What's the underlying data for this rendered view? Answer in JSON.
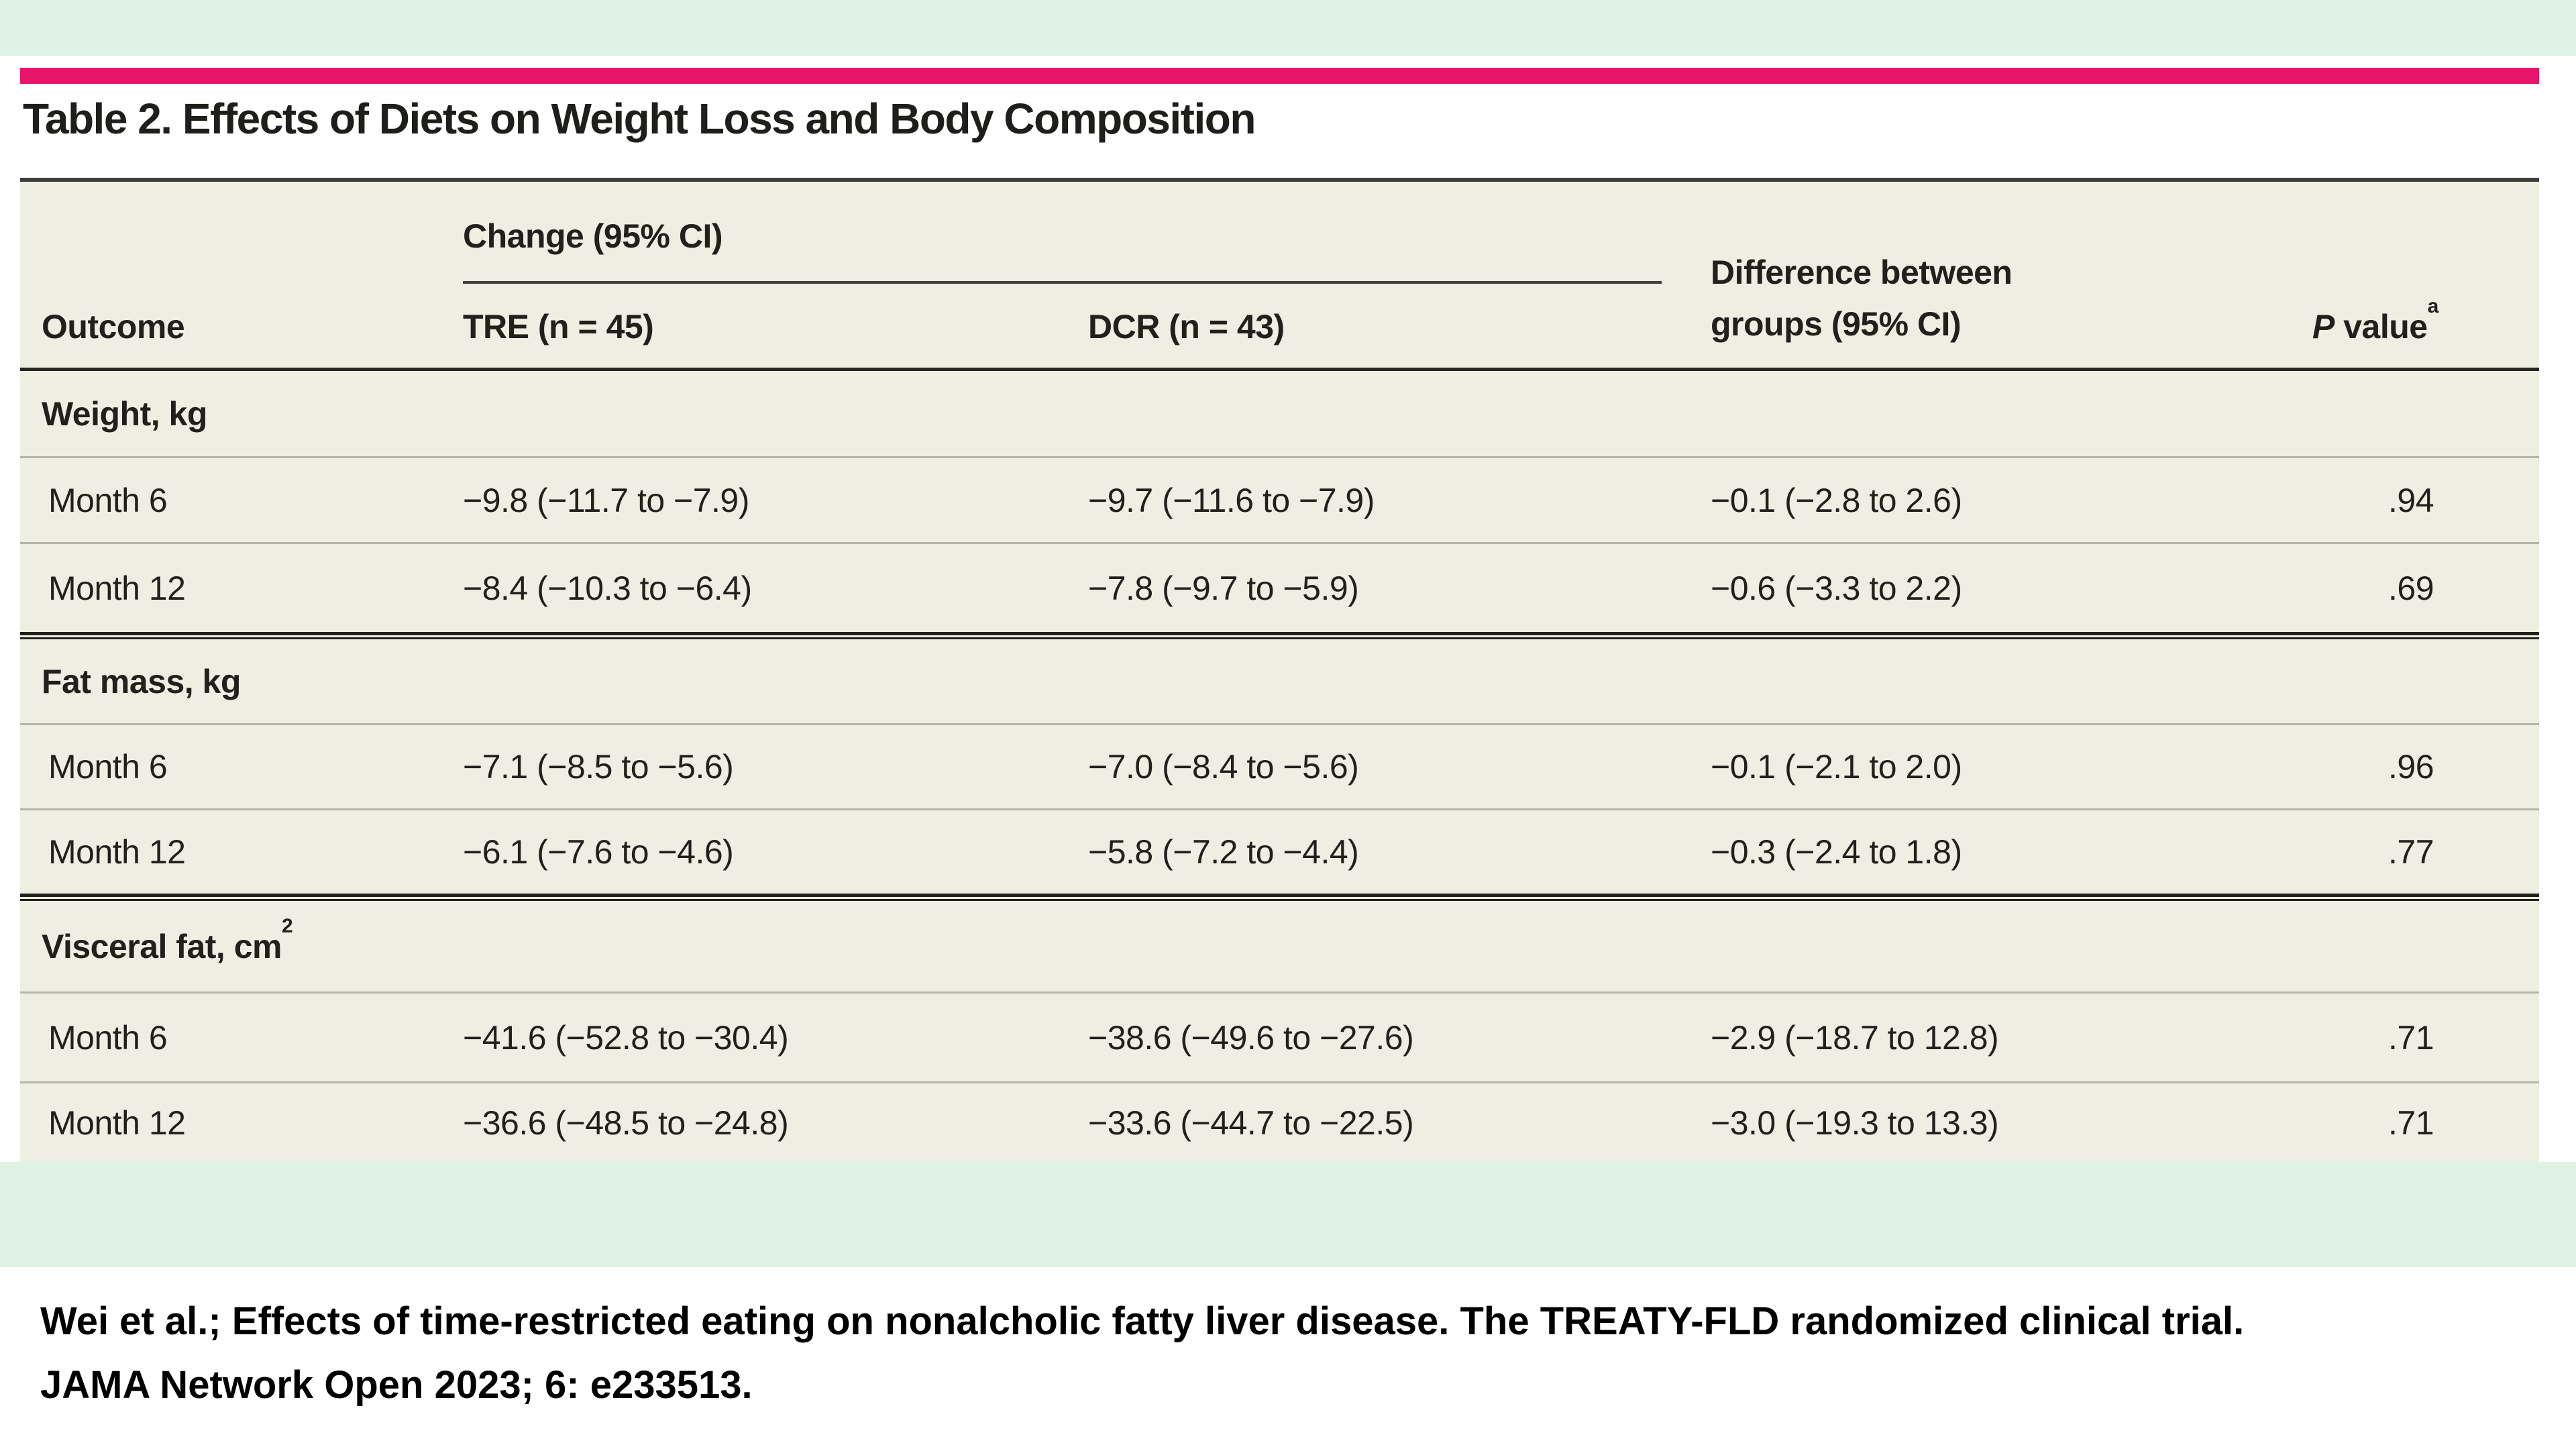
{
  "slide": {
    "accent_green": "#dff2e3",
    "accent_pink": "#e9156b",
    "table_background": "#efeee3"
  },
  "table": {
    "title": "Table 2. Effects of Diets on Weight Loss and Body Composition",
    "header": {
      "outcome": "Outcome",
      "change_group": "Change (95% CI)",
      "tre": "TRE (n = 45)",
      "dcr": "DCR (n = 43)",
      "difference": "Difference between groups (95% CI)",
      "p_value_p": "P",
      "p_value_rest": " value",
      "p_value_sup": "a"
    },
    "sections": [
      {
        "label": "Weight, kg",
        "rows": [
          {
            "outcome": "Month 6",
            "tre": "−9.8 (−11.7 to −7.9)",
            "dcr": "−9.7 (−11.6 to −7.9)",
            "diff": "−0.1 (−2.8 to 2.6)",
            "p": ".94"
          },
          {
            "outcome": "Month 12",
            "tre": "−8.4 (−10.3 to −6.4)",
            "dcr": "−7.8 (−9.7 to −5.9)",
            "diff": "−0.6 (−3.3 to 2.2)",
            "p": ".69"
          }
        ]
      },
      {
        "label": "Fat mass, kg",
        "rows": [
          {
            "outcome": "Month 6",
            "tre": "−7.1 (−8.5 to −5.6)",
            "dcr": "−7.0 (−8.4 to −5.6)",
            "diff": "−0.1 (−2.1 to 2.0)",
            "p": ".96"
          },
          {
            "outcome": "Month 12",
            "tre": "−6.1 (−7.6 to −4.6)",
            "dcr": "−5.8 (−7.2 to −4.4)",
            "diff": "−0.3 (−2.4 to 1.8)",
            "p": ".77"
          }
        ]
      },
      {
        "label": "Visceral fat, cm",
        "label_sup": "2",
        "rows": [
          {
            "outcome": "Month 6",
            "tre": "−41.6 (−52.8 to −30.4)",
            "dcr": "−38.6 (−49.6 to −27.6)",
            "diff": "−2.9 (−18.7 to 12.8)",
            "p": ".71"
          },
          {
            "outcome": "Month 12",
            "tre": "−36.6 (−48.5 to −24.8)",
            "dcr": "−33.6 (−44.7 to −22.5)",
            "diff": "−3.0 (−19.3 to 13.3)",
            "p": ".71"
          }
        ]
      }
    ]
  },
  "footer": {
    "line1": "Wei et al.; Effects of time-restricted eating on nonalcholic fatty liver disease. The TREATY-FLD randomized clinical trial.",
    "line2": "JAMA Network Open 2023; 6: e233513."
  }
}
